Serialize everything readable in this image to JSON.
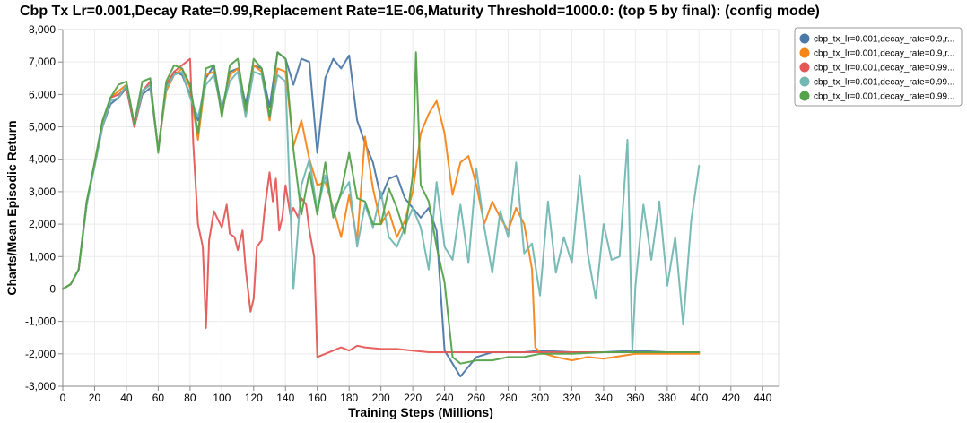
{
  "chart_data": {
    "type": "line",
    "title": "Cbp Tx Lr=0.001,Decay Rate=0.99,Replacement Rate=1E-06,Maturity Threshold=1000.0: (top 5 by final): (config mode)",
    "xlabel": "Training Steps (Millions)",
    "ylabel": "Charts/Mean Episodic Return",
    "xlim": [
      0,
      450
    ],
    "ylim": [
      -3000,
      8000
    ],
    "x_ticks": [
      0,
      20,
      40,
      60,
      80,
      100,
      120,
      140,
      160,
      180,
      200,
      220,
      240,
      260,
      280,
      300,
      320,
      340,
      360,
      380,
      400,
      420,
      440
    ],
    "y_ticks": [
      -3000,
      -2000,
      -1000,
      0,
      1000,
      2000,
      3000,
      4000,
      5000,
      6000,
      7000,
      8000
    ],
    "x_tick_labels": [
      "0",
      "20",
      "40",
      "60",
      "80",
      "100",
      "120",
      "140",
      "160",
      "180",
      "200",
      "220",
      "240",
      "260",
      "280",
      "300",
      "320",
      "340",
      "360",
      "380",
      "400",
      "420",
      "440"
    ],
    "y_tick_labels": [
      "-3,000",
      "-2,000",
      "-1,000",
      "0",
      "1,000",
      "2,000",
      "3,000",
      "4,000",
      "5,000",
      "6,000",
      "7,000",
      "8,000"
    ],
    "grid": true,
    "legend_position": "top-right",
    "series": [
      {
        "name": "cbp_tx_lr=0.001,decay_rate=0.9,r...",
        "color": "#4c78a8",
        "x": [
          0,
          5,
          10,
          15,
          20,
          25,
          30,
          35,
          40,
          45,
          50,
          55,
          60,
          65,
          70,
          75,
          80,
          85,
          90,
          95,
          100,
          105,
          110,
          115,
          120,
          125,
          130,
          135,
          140,
          145,
          150,
          155,
          160,
          165,
          170,
          175,
          180,
          185,
          190,
          195,
          200,
          205,
          210,
          215,
          220,
          225,
          230,
          235,
          240,
          245,
          250,
          260,
          270,
          280,
          290,
          300,
          320,
          340,
          360,
          380,
          400
        ],
        "y": [
          0,
          150,
          600,
          2700,
          3800,
          5000,
          5700,
          5900,
          6200,
          5000,
          6000,
          6200,
          4300,
          6200,
          6700,
          6600,
          6000,
          5200,
          6500,
          6900,
          5500,
          6700,
          6800,
          5700,
          6900,
          6800,
          5600,
          7300,
          7100,
          6300,
          7100,
          7000,
          4200,
          6500,
          7100,
          6800,
          7200,
          5200,
          4500,
          3900,
          2800,
          3400,
          3500,
          2800,
          2500,
          2200,
          2500,
          1800,
          -1900,
          -2300,
          -2700,
          -2100,
          -1950,
          -1950,
          -1950,
          -1900,
          -1950,
          -1950,
          -1900,
          -1950,
          -1950
        ]
      },
      {
        "name": "cbp_tx_lr=0.001,decay_rate=0.9,r...",
        "color": "#f58518",
        "x": [
          0,
          5,
          10,
          15,
          20,
          25,
          30,
          35,
          40,
          45,
          50,
          55,
          60,
          65,
          70,
          75,
          80,
          85,
          90,
          95,
          100,
          105,
          110,
          115,
          120,
          125,
          130,
          135,
          140,
          145,
          150,
          155,
          160,
          165,
          170,
          175,
          180,
          185,
          190,
          195,
          200,
          205,
          210,
          215,
          220,
          225,
          230,
          235,
          240,
          245,
          250,
          255,
          260,
          265,
          270,
          275,
          280,
          285,
          290,
          295,
          297,
          300,
          310,
          320,
          330,
          340,
          360,
          380,
          400
        ],
        "y": [
          0,
          150,
          600,
          2600,
          3900,
          5000,
          5900,
          6100,
          6300,
          5000,
          6100,
          6300,
          4300,
          6100,
          6600,
          6800,
          6200,
          4600,
          6600,
          6700,
          5400,
          6600,
          6800,
          5400,
          6900,
          6700,
          5200,
          6800,
          6700,
          4400,
          5200,
          4000,
          3200,
          3300,
          2500,
          1600,
          2900,
          1500,
          4700,
          3100,
          2000,
          2400,
          1600,
          2100,
          3000,
          4800,
          5400,
          5800,
          4800,
          2900,
          3900,
          4100,
          3200,
          2000,
          2700,
          2200,
          1800,
          2500,
          2000,
          600,
          -1800,
          -1950,
          -2100,
          -2200,
          -2100,
          -2150,
          -2000,
          -2000,
          -2000
        ]
      },
      {
        "name": "cbp_tx_lr=0.001,decay_rate=0.99...",
        "color": "#e45756",
        "x": [
          0,
          5,
          10,
          15,
          20,
          25,
          30,
          35,
          40,
          45,
          50,
          55,
          60,
          65,
          70,
          75,
          80,
          82,
          85,
          88,
          90,
          92,
          95,
          97,
          100,
          103,
          105,
          108,
          110,
          113,
          115,
          118,
          120,
          122,
          125,
          127,
          130,
          132,
          134,
          136,
          138,
          140,
          143,
          145,
          148,
          150,
          153,
          155,
          158,
          160,
          165,
          170,
          175,
          180,
          185,
          190,
          200,
          210,
          220,
          230,
          240,
          260,
          280,
          300,
          320,
          340,
          360,
          380,
          400
        ],
        "y": [
          0,
          150,
          600,
          2600,
          3900,
          5100,
          5900,
          6000,
          6200,
          5000,
          6100,
          6400,
          4300,
          6300,
          6700,
          6900,
          7100,
          4500,
          2000,
          1300,
          -1200,
          1500,
          2400,
          2200,
          1900,
          2600,
          1700,
          1600,
          1200,
          1800,
          600,
          -700,
          -300,
          1300,
          1500,
          2500,
          3600,
          2700,
          3400,
          1800,
          2200,
          3200,
          2300,
          2500,
          2200,
          2800,
          2600,
          1800,
          1000,
          -2100,
          -2000,
          -1900,
          -1800,
          -1900,
          -1750,
          -1800,
          -1850,
          -1850,
          -1900,
          -1950,
          -1950,
          -1950,
          -1950,
          -1950,
          -1950,
          -1950,
          -1950,
          -1950,
          -1950
        ]
      },
      {
        "name": "cbp_tx_lr=0.001,decay_rate=0.99...",
        "color": "#72b7b2",
        "x": [
          0,
          5,
          10,
          15,
          20,
          25,
          30,
          35,
          40,
          45,
          50,
          55,
          60,
          65,
          70,
          75,
          80,
          85,
          90,
          95,
          100,
          105,
          110,
          115,
          120,
          125,
          130,
          135,
          140,
          145,
          150,
          155,
          160,
          165,
          170,
          175,
          180,
          185,
          190,
          195,
          200,
          205,
          210,
          215,
          220,
          225,
          230,
          235,
          240,
          245,
          250,
          255,
          260,
          265,
          270,
          275,
          280,
          285,
          290,
          295,
          300,
          305,
          310,
          315,
          320,
          325,
          330,
          335,
          340,
          345,
          350,
          355,
          358,
          360,
          365,
          370,
          375,
          380,
          385,
          390,
          395,
          400
        ],
        "y": [
          0,
          150,
          600,
          2600,
          3800,
          5000,
          5800,
          5900,
          6300,
          5100,
          6100,
          6300,
          4300,
          6200,
          6600,
          6700,
          5900,
          5300,
          6300,
          6600,
          5500,
          6400,
          6700,
          5300,
          6700,
          6600,
          5300,
          6600,
          6400,
          0,
          3200,
          4000,
          2400,
          3500,
          2400,
          2900,
          3300,
          1300,
          2600,
          1900,
          3000,
          1600,
          1300,
          1900,
          2500,
          1900,
          600,
          3300,
          1300,
          900,
          2600,
          800,
          3700,
          1900,
          500,
          2400,
          1600,
          3900,
          1100,
          1400,
          -200,
          2700,
          500,
          1600,
          800,
          3500,
          1100,
          -300,
          2000,
          900,
          1000,
          4600,
          -1900,
          100,
          2600,
          900,
          2700,
          100,
          1600,
          -1100,
          2100,
          3800
        ]
      },
      {
        "name": "cbp_tx_lr=0.001,decay_rate=0.99...",
        "color": "#54a24b",
        "x": [
          0,
          5,
          10,
          15,
          20,
          25,
          30,
          35,
          40,
          45,
          50,
          55,
          60,
          65,
          70,
          75,
          80,
          85,
          90,
          95,
          100,
          105,
          110,
          115,
          120,
          125,
          130,
          135,
          140,
          145,
          150,
          155,
          160,
          165,
          170,
          175,
          180,
          185,
          190,
          195,
          200,
          205,
          210,
          215,
          220,
          222,
          225,
          230,
          235,
          240,
          245,
          250,
          260,
          270,
          280,
          290,
          300,
          320,
          340,
          360,
          380,
          400
        ],
        "y": [
          0,
          150,
          600,
          2700,
          3900,
          5200,
          5900,
          6300,
          6400,
          5100,
          6400,
          6500,
          4200,
          6400,
          6900,
          6800,
          6300,
          4800,
          6800,
          6900,
          5300,
          6900,
          7100,
          5500,
          7100,
          6800,
          5300,
          7300,
          7100,
          4300,
          2300,
          3600,
          2300,
          3900,
          2200,
          3000,
          4200,
          2800,
          2700,
          2000,
          2000,
          3100,
          2500,
          1700,
          3500,
          7300,
          3200,
          2700,
          1300,
          200,
          -2100,
          -2300,
          -2200,
          -2200,
          -2100,
          -2100,
          -2000,
          -2000,
          -1950,
          -1950,
          -1950,
          -1950
        ]
      }
    ]
  }
}
